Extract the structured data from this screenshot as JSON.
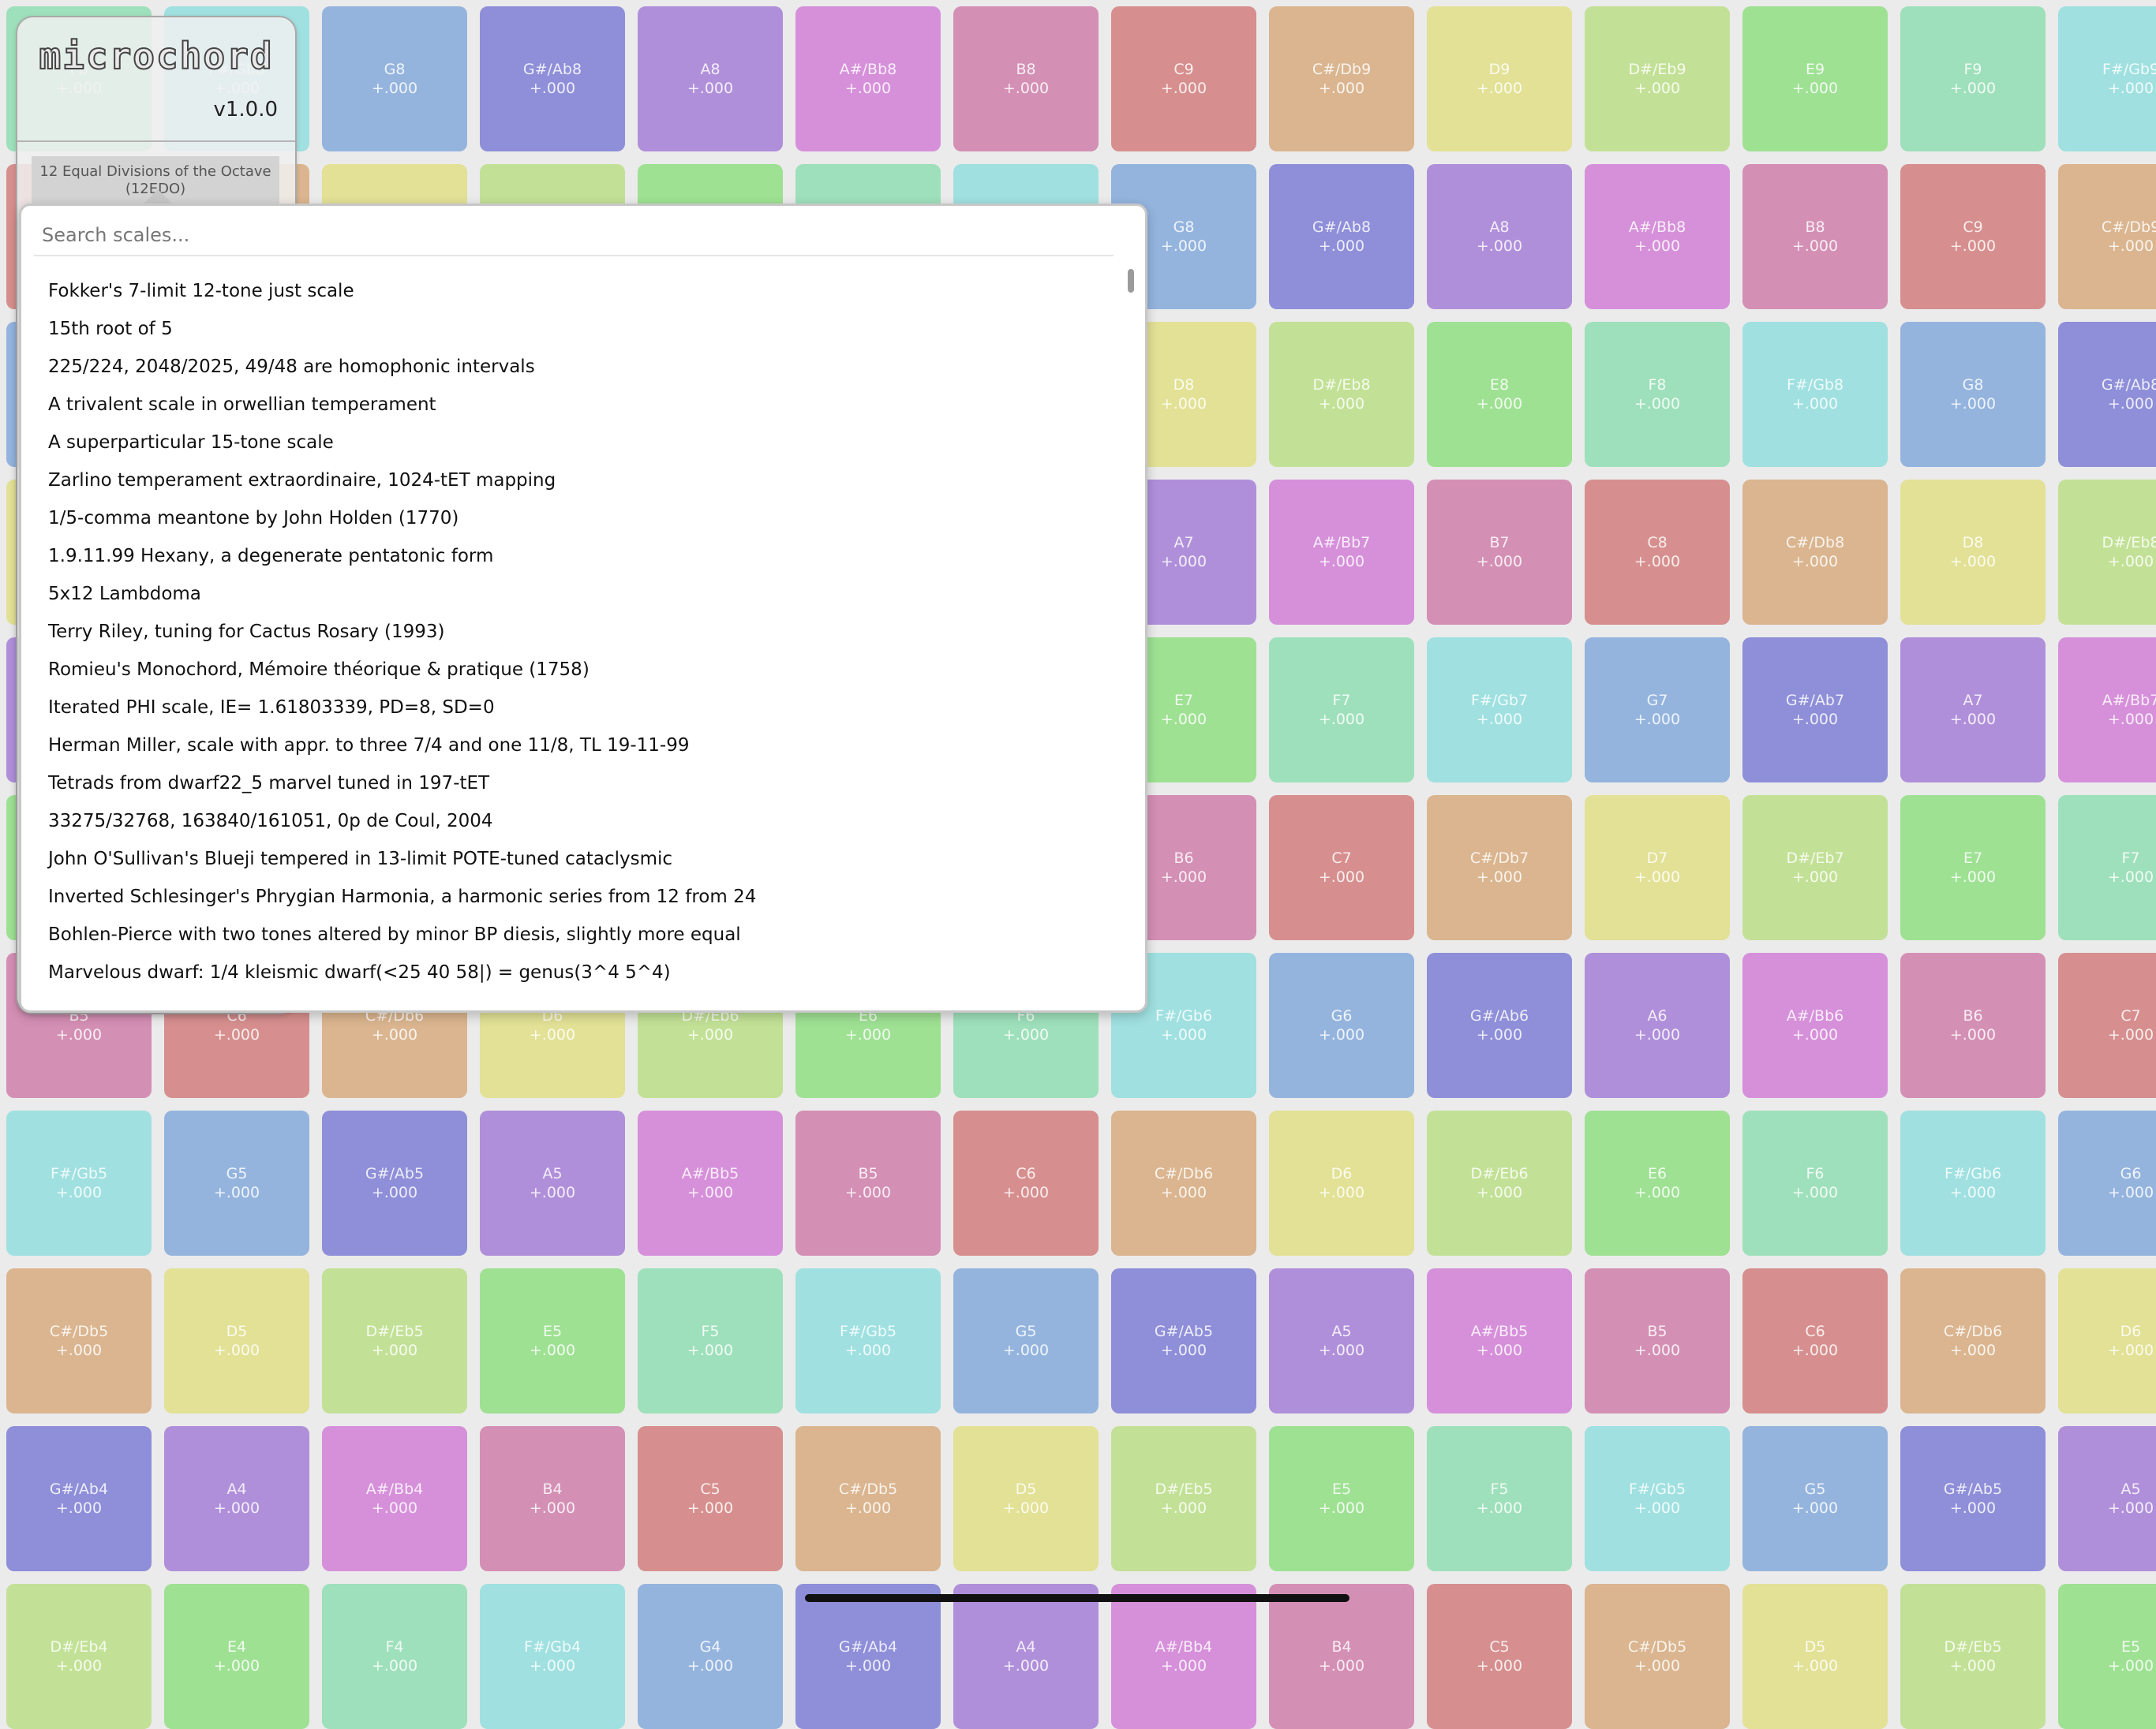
{
  "app": {
    "logo": "microchord",
    "version": "v1.0.0",
    "current_scale": "12 Equal Divisions of the Octave (12EDO)"
  },
  "search": {
    "placeholder": "Search scales...",
    "value": ""
  },
  "scale_list": [
    "Fokker's 7-limit 12-tone just scale",
    "15th root of 5",
    "225/224, 2048/2025, 49/48 are homophonic intervals",
    "A trivalent scale in orwellian temperament",
    "A superparticular 15-tone scale",
    "Zarlino temperament extraordinaire, 1024-tET mapping",
    "1/5-comma meantone by John Holden (1770)",
    "1.9.11.99 Hexany, a degenerate pentatonic form",
    "5x12 Lambdoma",
    "Terry Riley, tuning for Cactus Rosary (1993)",
    "Romieu's Monochord, Mémoire théorique & pratique (1758)",
    "Iterated PHI scale, IE= 1.61803339, PD=8, SD=0",
    "Herman Miller, scale with appr. to three 7/4 and one 11/8, TL 19-11-99",
    "Tetrads from dwarf22_5 marvel tuned in 197-tET",
    "33275/32768, 163840/161051, 0p de Coul, 2004",
    "John O'Sullivan's Blueji tempered in 13-limit POTE-tuned cataclysmic",
    "Inverted Schlesinger's Phrygian Harmonia, a harmonic series from 12 from 24",
    "Bohlen-Pierce with two tones altered by minor BP diesis, slightly more equal",
    "Marvelous dwarf: 1/4 kleismic dwarf(<25 40 58|) = genus(3^4 5^4)"
  ],
  "keyboard": {
    "cents_label": "+.000",
    "note_names": [
      "C",
      "C#/Db",
      "D",
      "D#/Eb",
      "E",
      "F",
      "F#/Gb",
      "G",
      "G#/Ab",
      "A",
      "A#/Bb",
      "B"
    ],
    "pitch_class_colors": [
      "#d68f8e",
      "#dab58f",
      "#e2e196",
      "#c2e196",
      "#9ee193",
      "#9ee0bb",
      "#a0e0e0",
      "#94b4de",
      "#8e8ed9",
      "#b08fda",
      "#d690da",
      "#d48fb4"
    ],
    "top_left_note": {
      "pitch_class": 5,
      "octave": 8
    },
    "columns": 14,
    "rows": 11,
    "column_step": 1,
    "row_step": -5
  },
  "colors": {
    "background": "#ebebeb",
    "key_label": "rgba(255,255,255,0.85)"
  }
}
